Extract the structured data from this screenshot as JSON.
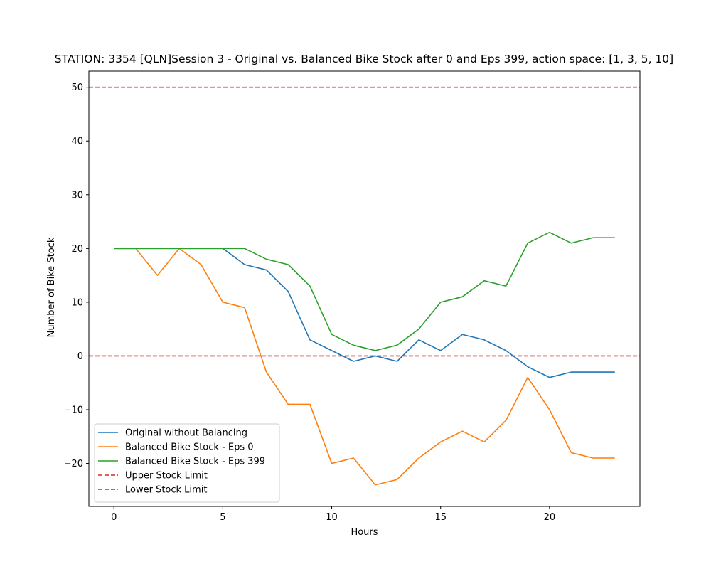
{
  "chart_data": {
    "type": "line",
    "title": "STATION: 3354 [QLN]Session 3 - Original vs. Balanced Bike Stock after 0 and Eps 399, action space: [1, 3, 5, 10]",
    "xlabel": "Hours",
    "ylabel": "Number of Bike Stock",
    "xlim": [
      -1.15,
      24.15
    ],
    "ylim": [
      -28,
      53
    ],
    "xticks": [
      0,
      5,
      10,
      15,
      20
    ],
    "yticks": [
      -20,
      -10,
      0,
      10,
      20,
      30,
      40,
      50
    ],
    "ytick_labels": [
      "−20",
      "−10",
      "0",
      "10",
      "20",
      "30",
      "40",
      "50"
    ],
    "grid": false,
    "legend_position": "lower-left",
    "x": [
      0,
      1,
      2,
      3,
      4,
      5,
      6,
      7,
      8,
      9,
      10,
      11,
      12,
      13,
      14,
      15,
      16,
      17,
      18,
      19,
      20,
      21,
      22,
      23
    ],
    "series": [
      {
        "name": "Original without Balancing",
        "color": "#1f77b4",
        "style": "solid",
        "values": [
          20,
          20,
          20,
          20,
          20,
          20,
          17,
          16,
          12,
          3,
          1,
          -1,
          0,
          -1,
          3,
          1,
          4,
          3,
          1,
          -2,
          -4,
          -3,
          -3,
          -3
        ]
      },
      {
        "name": "Balanced Bike Stock - Eps 0",
        "color": "#ff7f0e",
        "style": "solid",
        "values": [
          20,
          20,
          15,
          20,
          17,
          10,
          9,
          -3,
          -9,
          -9,
          -20,
          -19,
          -24,
          -23,
          -19,
          -16,
          -14,
          -16,
          -12,
          -4,
          -10,
          -18,
          -19,
          -19
        ]
      },
      {
        "name": "Balanced Bike Stock - Eps 399",
        "color": "#2ca02c",
        "style": "solid",
        "values": [
          20,
          20,
          20,
          20,
          20,
          20,
          20,
          18,
          17,
          13,
          4,
          2,
          1,
          2,
          5,
          10,
          11,
          14,
          13,
          21,
          23,
          21,
          22,
          22
        ]
      }
    ],
    "hlines": [
      {
        "name": "Upper Stock Limit",
        "value": 50,
        "color": "#d62728",
        "style": "dashed"
      },
      {
        "name": "Lower Stock Limit",
        "value": 0,
        "color": "#d62728",
        "style": "dashed"
      }
    ]
  }
}
